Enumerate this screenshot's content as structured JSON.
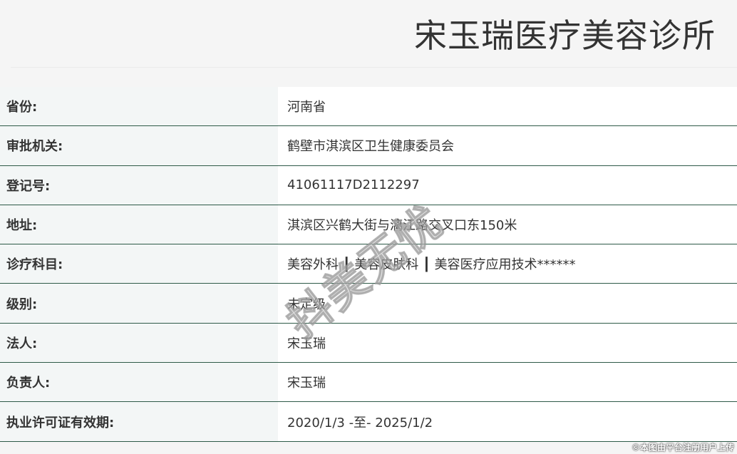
{
  "header": {
    "title": "宋玉瑞医疗美容诊所"
  },
  "rows": [
    {
      "label": "省份:",
      "value": "河南省"
    },
    {
      "label": "审批机关:",
      "value": "鹤壁市淇滨区卫生健康委员会"
    },
    {
      "label": "登记号:",
      "value": "41061117D2112297"
    },
    {
      "label": "地址:",
      "value": "淇滨区兴鹤大街与漓江路交叉口东150米"
    },
    {
      "label": "诊疗科目:",
      "value": "美容外科 ┃ 美容皮肤科 ┃ 美容医疗应用技术******"
    },
    {
      "label": "级别:",
      "value": "未定级"
    },
    {
      "label": "法人:",
      "value": "宋玉瑞"
    },
    {
      "label": "负责人:",
      "value": "宋玉瑞"
    },
    {
      "label": "执业许可证有效期:",
      "value": "2020/1/3 -至- 2025/1/2"
    }
  ],
  "watermark": "抖美无忧",
  "footer": "©本图由平台注册用户上传"
}
